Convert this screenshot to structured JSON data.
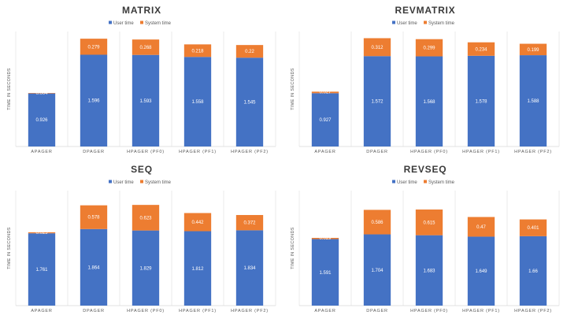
{
  "colors": {
    "user": "#4472c4",
    "system": "#ed7d31",
    "grid": "#e6e6e6",
    "axis": "#d9d9d9"
  },
  "chart_data": [
    {
      "type": "bar",
      "stacked": true,
      "title": "MATRIX",
      "ylabel": "TIME IN SECONDS",
      "categories": [
        "APAGER",
        "DPAGER",
        "HPAGER (PF0)",
        "HPAGER (PF1)",
        "HPAGER (PF2)"
      ],
      "series": [
        {
          "name": "User time",
          "values": [
            0.926,
            1.596,
            1.593,
            1.558,
            1.545
          ],
          "labels": [
            "0.926",
            "1.596",
            "1.593",
            "1.558",
            "1.545"
          ]
        },
        {
          "name": "System time",
          "values": [
            0.004,
            0.279,
            0.268,
            0.218,
            0.22
          ],
          "labels": [
            "0.004",
            "0.279",
            "0.268",
            "0.218",
            "0.22"
          ]
        }
      ],
      "ylim": [
        0,
        2.0
      ],
      "legend": "top",
      "grid": "vertical-category-separators"
    },
    {
      "type": "bar",
      "stacked": true,
      "title": "REVMATRIX",
      "ylabel": "TIME IN SECONDS",
      "categories": [
        "APAGER",
        "DPAGER",
        "HPAGER (PF0)",
        "HPAGER (PF1)",
        "HPAGER (PF2)"
      ],
      "series": [
        {
          "name": "User time",
          "values": [
            0.927,
            1.572,
            1.568,
            1.578,
            1.588
          ],
          "labels": [
            "0.927",
            "1.572",
            "1.568",
            "1.578",
            "1.588"
          ]
        },
        {
          "name": "System time",
          "values": [
            0.027,
            0.312,
            0.299,
            0.234,
            0.199
          ],
          "labels": [
            "0.027",
            "0.312",
            "0.299",
            "0.234",
            "0.199"
          ]
        }
      ],
      "ylim": [
        0,
        2.0
      ],
      "legend": "top",
      "grid": "vertical-category-separators"
    },
    {
      "type": "bar",
      "stacked": true,
      "title": "SEQ",
      "ylabel": "TIME IN SECONDS",
      "categories": [
        "APAGER",
        "DPAGER",
        "HPAGER (PF0)",
        "HPAGER (PF1)",
        "HPAGER (PF2)"
      ],
      "series": [
        {
          "name": "User time",
          "values": [
            1.761,
            1.864,
            1.829,
            1.812,
            1.834
          ],
          "labels": [
            "1.761",
            "1.864",
            "1.829",
            "1.812",
            "1.834"
          ]
        },
        {
          "name": "System time",
          "values": [
            0.025,
            0.578,
            0.623,
            0.442,
            0.372
          ],
          "labels": [
            "0.025",
            "0.578",
            "0.623",
            "0.442",
            "0.372"
          ]
        }
      ],
      "ylim": [
        0,
        2.8
      ],
      "legend": "top",
      "grid": "vertical-category-separators"
    },
    {
      "type": "bar",
      "stacked": true,
      "title": "REVSEQ",
      "ylabel": "TIME IN SECONDS",
      "categories": [
        "APAGER",
        "DPAGER",
        "HPAGER (PF0)",
        "HPAGER (PF1)",
        "HPAGER (PF2)"
      ],
      "series": [
        {
          "name": "User time",
          "values": [
            1.591,
            1.704,
            1.683,
            1.649,
            1.66
          ],
          "labels": [
            "1.591",
            "1.704",
            "1.683",
            "1.649",
            "1.66"
          ]
        },
        {
          "name": "System time",
          "values": [
            0.029,
            0.586,
            0.615,
            0.47,
            0.401
          ],
          "labels": [
            "0.029",
            "0.586",
            "0.615",
            "0.47",
            "0.401"
          ]
        }
      ],
      "ylim": [
        0,
        2.75
      ],
      "legend": "top",
      "grid": "vertical-category-separators"
    }
  ]
}
